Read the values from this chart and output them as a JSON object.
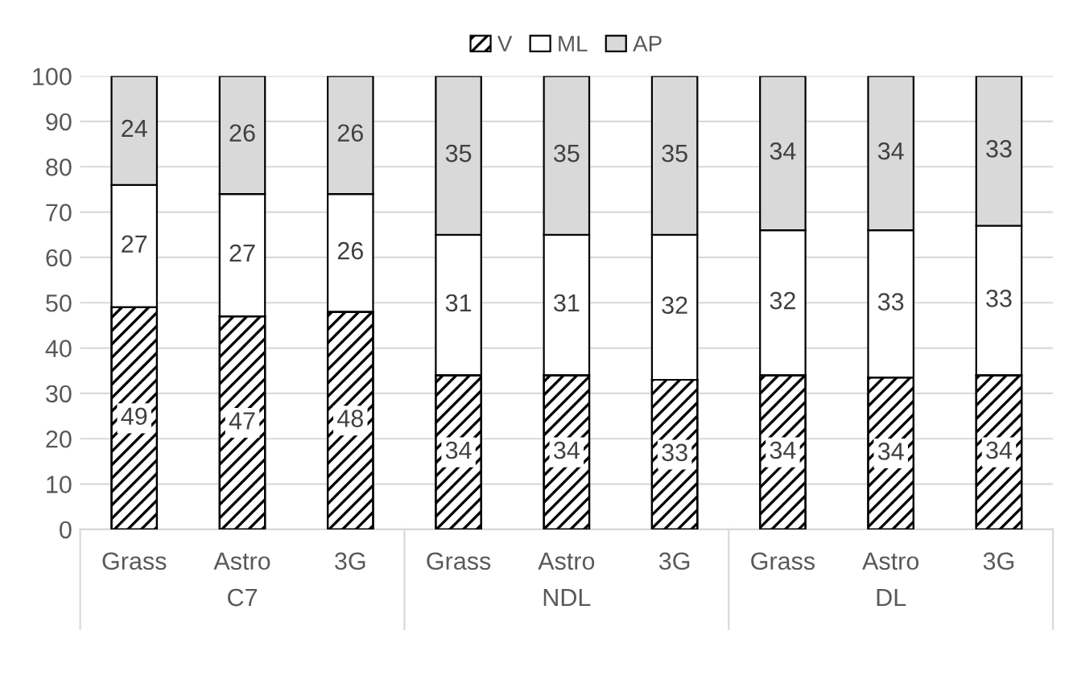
{
  "chart_data": {
    "type": "bar",
    "stacked": true,
    "categories": [
      "Grass",
      "Astro",
      "3G",
      "Grass",
      "Astro",
      "3G",
      "Grass",
      "Astro",
      "3G"
    ],
    "series": [
      {
        "name": "V",
        "color": "#000000",
        "values": [
          49,
          47,
          48,
          34,
          34,
          33,
          34,
          33.5,
          34
        ],
        "value_labels": [
          "49",
          "47",
          "48",
          "34",
          "34",
          "33",
          "34",
          "34",
          "34"
        ]
      },
      {
        "name": "ML",
        "color": "#ffffff",
        "values": [
          27,
          27,
          26,
          31,
          31,
          32,
          32,
          32.5,
          33
        ],
        "value_labels": [
          "27",
          "27",
          "26",
          "31",
          "31",
          "32",
          "32",
          "33",
          "33"
        ]
      },
      {
        "name": "AP",
        "color": "#d9d9d9",
        "values": [
          24,
          26,
          26,
          35,
          35,
          35,
          34,
          34,
          33
        ],
        "value_labels": [
          "24",
          "26",
          "26",
          "35",
          "35",
          "35",
          "34",
          "34",
          "33"
        ]
      }
    ],
    "annotations": [
      "C7",
      "NDL",
      "DL"
    ],
    "ylim": [
      0,
      100
    ],
    "yticks": [
      0,
      10,
      20,
      30,
      40,
      50,
      60,
      70,
      80,
      90,
      100
    ],
    "grid": "y",
    "legend": "top"
  }
}
